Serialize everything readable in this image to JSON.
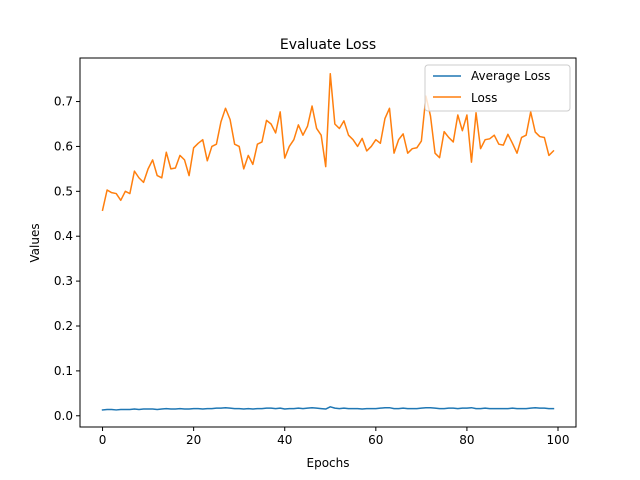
{
  "chart_data": {
    "type": "line",
    "title": "Evaluate Loss",
    "xlabel": "Epochs",
    "ylabel": "Values",
    "xlim": [
      -4.95,
      103.95
    ],
    "ylim": [
      -0.025,
      0.797
    ],
    "xticks": [
      0,
      20,
      40,
      60,
      80,
      100
    ],
    "yticks": [
      0.0,
      0.1,
      0.2,
      0.3,
      0.4,
      0.5,
      0.6,
      0.7
    ],
    "ytick_labels": [
      "0.0",
      "0.1",
      "0.2",
      "0.3",
      "0.4",
      "0.5",
      "0.6",
      "0.7"
    ],
    "legend_placement": "upper-right",
    "grid": false,
    "x": [
      0,
      1,
      2,
      3,
      4,
      5,
      6,
      7,
      8,
      9,
      10,
      11,
      12,
      13,
      14,
      15,
      16,
      17,
      18,
      19,
      20,
      21,
      22,
      23,
      24,
      25,
      26,
      27,
      28,
      29,
      30,
      31,
      32,
      33,
      34,
      35,
      36,
      37,
      38,
      39,
      40,
      41,
      42,
      43,
      44,
      45,
      46,
      47,
      48,
      49,
      50,
      51,
      52,
      53,
      54,
      55,
      56,
      57,
      58,
      59,
      60,
      61,
      62,
      63,
      64,
      65,
      66,
      67,
      68,
      69,
      70,
      71,
      72,
      73,
      74,
      75,
      76,
      77,
      78,
      79,
      80,
      81,
      82,
      83,
      84,
      85,
      86,
      87,
      88,
      89,
      90,
      91,
      92,
      93,
      94,
      95,
      96,
      97,
      98,
      99
    ],
    "series": [
      {
        "name": "Average Loss",
        "color": "#1f77b4",
        "values": [
          0.013,
          0.014,
          0.014,
          0.013,
          0.014,
          0.014,
          0.014,
          0.015,
          0.014,
          0.015,
          0.015,
          0.015,
          0.014,
          0.015,
          0.016,
          0.015,
          0.015,
          0.016,
          0.015,
          0.015,
          0.016,
          0.016,
          0.015,
          0.016,
          0.016,
          0.017,
          0.017,
          0.018,
          0.017,
          0.016,
          0.016,
          0.015,
          0.016,
          0.015,
          0.016,
          0.016,
          0.017,
          0.017,
          0.016,
          0.017,
          0.015,
          0.016,
          0.016,
          0.017,
          0.016,
          0.017,
          0.018,
          0.017,
          0.016,
          0.015,
          0.02,
          0.017,
          0.016,
          0.017,
          0.016,
          0.016,
          0.016,
          0.015,
          0.016,
          0.016,
          0.016,
          0.017,
          0.018,
          0.018,
          0.016,
          0.016,
          0.017,
          0.016,
          0.016,
          0.016,
          0.017,
          0.018,
          0.018,
          0.017,
          0.016,
          0.016,
          0.017,
          0.017,
          0.016,
          0.017,
          0.017,
          0.018,
          0.016,
          0.016,
          0.017,
          0.016,
          0.016,
          0.016,
          0.016,
          0.016,
          0.017,
          0.016,
          0.016,
          0.016,
          0.017,
          0.018,
          0.017,
          0.017,
          0.016,
          0.016
        ]
      },
      {
        "name": "Loss",
        "color": "#ff7f0e",
        "values": [
          0.458,
          0.503,
          0.497,
          0.495,
          0.48,
          0.5,
          0.495,
          0.545,
          0.53,
          0.52,
          0.55,
          0.57,
          0.535,
          0.53,
          0.587,
          0.55,
          0.552,
          0.58,
          0.57,
          0.535,
          0.597,
          0.607,
          0.615,
          0.568,
          0.6,
          0.605,
          0.655,
          0.685,
          0.66,
          0.605,
          0.6,
          0.55,
          0.58,
          0.56,
          0.605,
          0.61,
          0.658,
          0.65,
          0.63,
          0.677,
          0.574,
          0.6,
          0.615,
          0.648,
          0.625,
          0.645,
          0.69,
          0.64,
          0.625,
          0.555,
          0.762,
          0.65,
          0.64,
          0.657,
          0.625,
          0.615,
          0.6,
          0.618,
          0.59,
          0.6,
          0.615,
          0.607,
          0.662,
          0.685,
          0.585,
          0.615,
          0.628,
          0.585,
          0.595,
          0.597,
          0.612,
          0.712,
          0.668,
          0.585,
          0.575,
          0.633,
          0.62,
          0.61,
          0.67,
          0.635,
          0.67,
          0.565,
          0.675,
          0.595,
          0.615,
          0.617,
          0.625,
          0.605,
          0.603,
          0.627,
          0.607,
          0.585,
          0.62,
          0.625,
          0.677,
          0.632,
          0.622,
          0.62,
          0.58,
          0.59
        ]
      }
    ]
  }
}
